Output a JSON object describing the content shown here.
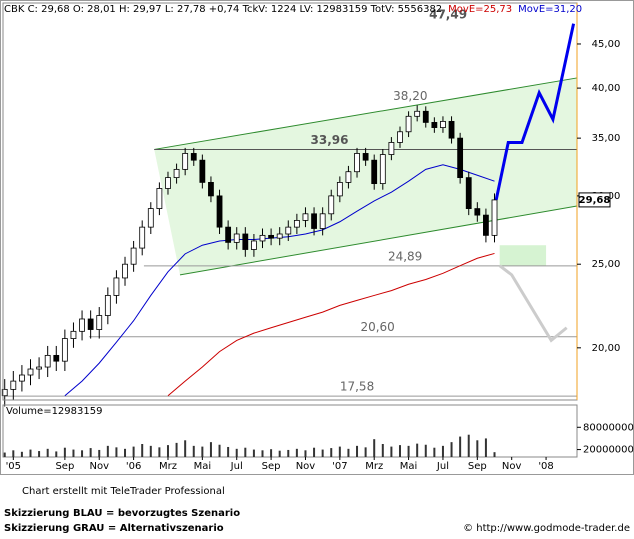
{
  "chart_data": {
    "type": "candlestick",
    "log_scale": true,
    "header": "CBK C: 29,68 O: 28,01 H: 29,97 L: 27,78 +0,74 TckV: 1224 LV: 12983159 TotV: 5556382",
    "x": [
      -1.5,
      -1,
      -0.5,
      0,
      0.5,
      1,
      1.5,
      2,
      2.5,
      3,
      3.5,
      4,
      4.5,
      5,
      5.5,
      6,
      6.5,
      7,
      7.5,
      8,
      8.5,
      9,
      9.5,
      10,
      10.5,
      11,
      11.5,
      12,
      12.5,
      13,
      13.5,
      14,
      14.5,
      15,
      15.5,
      16,
      16.5,
      17,
      17.5,
      18,
      18.5,
      19,
      19.5,
      20,
      20.5,
      21,
      21.5,
      22,
      22.5,
      23,
      23.5,
      24,
      24.5,
      25,
      25.5,
      26,
      26.5,
      27
    ],
    "open": [
      17.6,
      17.9,
      18.3,
      18.6,
      18.9,
      19.0,
      19.6,
      19.3,
      20.5,
      20.9,
      21.6,
      21.0,
      21.8,
      23.0,
      24.1,
      25.0,
      26.1,
      27.6,
      29.0,
      30.6,
      31.5,
      32.2,
      33.6,
      33.0,
      31.1,
      30.0,
      27.6,
      26.5,
      27.1,
      26.0,
      26.6,
      27.0,
      26.8,
      27.1,
      27.6,
      28.1,
      28.6,
      27.5,
      28.6,
      30.0,
      31.1,
      32.0,
      33.6,
      33.0,
      31.0,
      33.5,
      34.6,
      35.6,
      37.1,
      37.6,
      36.5,
      36.0,
      36.6,
      35.0,
      31.5,
      29.0,
      28.5,
      27.0
    ],
    "high": [
      18.4,
      18.8,
      19.1,
      19.4,
      19.5,
      20.1,
      20.1,
      21.0,
      21.4,
      22.1,
      22.1,
      22.3,
      23.5,
      24.6,
      25.5,
      26.6,
      28.1,
      29.5,
      31.1,
      32.0,
      32.7,
      34.1,
      34.1,
      33.5,
      31.6,
      30.5,
      28.1,
      27.6,
      27.6,
      27.1,
      27.5,
      27.5,
      27.6,
      28.1,
      28.6,
      29.1,
      29.1,
      29.1,
      30.5,
      31.6,
      32.5,
      34.1,
      34.1,
      33.5,
      34.0,
      35.1,
      36.1,
      37.6,
      38.2,
      38.1,
      37.0,
      37.1,
      37.1,
      35.5,
      32.0,
      29.5,
      29.0,
      30.2
    ],
    "low": [
      17.1,
      17.4,
      17.8,
      18.1,
      18.4,
      18.5,
      18.8,
      18.8,
      20.0,
      20.4,
      20.5,
      20.5,
      21.3,
      22.5,
      23.6,
      24.5,
      25.6,
      27.1,
      28.5,
      30.1,
      31.0,
      31.7,
      32.5,
      30.6,
      29.5,
      27.1,
      26.0,
      26.0,
      25.5,
      25.5,
      26.1,
      26.3,
      26.3,
      26.6,
      27.1,
      27.6,
      27.0,
      27.0,
      28.1,
      29.5,
      30.6,
      31.5,
      32.5,
      30.5,
      30.5,
      33.0,
      34.1,
      35.1,
      36.6,
      36.0,
      35.5,
      35.5,
      34.5,
      31.0,
      28.5,
      28.0,
      26.5,
      26.5
    ],
    "close": [
      17.9,
      18.3,
      18.6,
      18.9,
      19.0,
      19.6,
      19.3,
      20.5,
      20.9,
      21.6,
      21.0,
      21.8,
      23.0,
      24.1,
      25.0,
      26.1,
      27.6,
      29.0,
      30.6,
      31.5,
      32.2,
      33.6,
      33.0,
      31.1,
      30.0,
      27.6,
      26.5,
      27.1,
      26.0,
      26.6,
      27.0,
      26.8,
      27.1,
      27.6,
      28.1,
      28.6,
      27.5,
      28.6,
      30.0,
      31.1,
      32.0,
      33.6,
      33.0,
      31.0,
      33.5,
      34.6,
      35.6,
      37.1,
      37.6,
      36.5,
      36.0,
      36.6,
      35.0,
      31.5,
      29.0,
      28.5,
      27.0,
      29.68
    ],
    "last_label": "29,68",
    "xlim": [
      -1.6,
      31.8
    ],
    "xticks": [
      {
        "value": -1,
        "label": "'05"
      },
      {
        "value": 2,
        "label": "Sep"
      },
      {
        "value": 4,
        "label": "Nov"
      },
      {
        "value": 6,
        "label": "'06"
      },
      {
        "value": 8,
        "label": "Mrz"
      },
      {
        "value": 10,
        "label": "Mai"
      },
      {
        "value": 12,
        "label": "Jul"
      },
      {
        "value": 14,
        "label": "Sep"
      },
      {
        "value": 16,
        "label": "Nov"
      },
      {
        "value": 18,
        "label": "'07"
      },
      {
        "value": 20,
        "label": "Mrz"
      },
      {
        "value": 22,
        "label": "Mai"
      },
      {
        "value": 24,
        "label": "Jul"
      },
      {
        "value": 26,
        "label": "Sep"
      },
      {
        "value": 28,
        "label": "Nov"
      },
      {
        "value": 30,
        "label": "'08"
      }
    ],
    "ylim": [
      17.4,
      50.2
    ],
    "yticks": [
      {
        "value": 20,
        "label": "20,00"
      },
      {
        "value": 25,
        "label": "25,00"
      },
      {
        "value": 30,
        "label": "30,00"
      },
      {
        "value": 35,
        "label": "35,00"
      },
      {
        "value": 40,
        "label": "40,00"
      },
      {
        "value": 45,
        "label": "45,00"
      }
    ],
    "series": [
      {
        "name": "MovE=25,73",
        "color": "#cc0000",
        "x": [
          8,
          9,
          10,
          11,
          12,
          13,
          14,
          15,
          16,
          17,
          18,
          19,
          20,
          21,
          22,
          23,
          24,
          25,
          26,
          27
        ],
        "values": [
          17.6,
          18.3,
          19.0,
          19.8,
          20.4,
          20.8,
          21.1,
          21.4,
          21.7,
          22.0,
          22.4,
          22.7,
          23.0,
          23.3,
          23.7,
          24.0,
          24.4,
          24.9,
          25.4,
          25.73
        ]
      },
      {
        "name": "MovE=31,20",
        "color": "#0000cc",
        "x": [
          2,
          3,
          4,
          5,
          6,
          7,
          8,
          9,
          10,
          11,
          12,
          13,
          14,
          15,
          16,
          17,
          18,
          19,
          20,
          21,
          22,
          23,
          24,
          25,
          26,
          27
        ],
        "values": [
          17.6,
          18.3,
          19.2,
          20.3,
          21.5,
          23.0,
          24.5,
          25.7,
          26.3,
          26.6,
          26.7,
          26.7,
          26.8,
          26.9,
          27.1,
          27.4,
          28.0,
          28.8,
          29.6,
          30.3,
          31.2,
          32.2,
          32.6,
          32.2,
          31.7,
          31.2
        ]
      }
    ],
    "levels": [
      {
        "value": 47.49,
        "label": "47,49",
        "x": 24.3,
        "line_from": null,
        "emphasis": true
      },
      {
        "value": 38.2,
        "label": "38,20",
        "x": 22.1,
        "line_from": null,
        "emphasis": false
      },
      {
        "value": 33.96,
        "label": "33,96",
        "x": 17.4,
        "line_from": 7.2,
        "emphasis": true
      },
      {
        "value": 24.89,
        "label": "24,89",
        "x": 21.8,
        "line_from": 6.6,
        "emphasis": false
      },
      {
        "value": 20.6,
        "label": "20,60",
        "x": 20.2,
        "line_from": 3.4,
        "emphasis": false
      },
      {
        "value": 17.58,
        "label": "17,58",
        "x": 19.0,
        "line_from": -1.5,
        "emphasis": false
      }
    ],
    "channel": {
      "color": "#2e8b2e",
      "fill": "#e4f7e0",
      "upper": {
        "x": [
          7.2,
          31.8
        ],
        "values": [
          33.96,
          41.1
        ]
      },
      "lower": {
        "x": [
          8.7,
          31.8
        ],
        "values": [
          24.3,
          29.2
        ]
      }
    },
    "zone": {
      "color": "#d6f3d2",
      "x": [
        27.3,
        30.0
      ],
      "values": [
        24.89,
        26.3
      ]
    },
    "scenarios": [
      {
        "name": "Skizzierung BLAU = bevorzugtes Szenario",
        "color": "#0000ee",
        "x": [
          27.1,
          27.8,
          28.6,
          29.6,
          30.4,
          31.6
        ],
        "values": [
          29.7,
          34.6,
          34.6,
          39.5,
          36.8,
          47.5
        ]
      },
      {
        "name": "Skizzierung GRAU = Alternativszenario",
        "color": "#cccccc",
        "x": [
          27.3,
          28.0,
          30.3,
          31.2
        ],
        "values": [
          24.9,
          24.3,
          20.4,
          21.1
        ]
      }
    ],
    "volume": {
      "label": "Volume=12983159",
      "color": "#333333",
      "values": [
        12000000,
        18000000,
        14000000,
        20000000,
        16000000,
        22000000,
        15000000,
        25000000,
        20000000,
        18000000,
        24000000,
        19000000,
        30000000,
        26000000,
        22000000,
        28000000,
        35000000,
        30000000,
        26000000,
        32000000,
        38000000,
        45000000,
        30000000,
        28000000,
        40000000,
        33000000,
        27000000,
        22000000,
        25000000,
        20000000,
        18000000,
        21000000,
        17000000,
        19000000,
        22000000,
        18000000,
        25000000,
        20000000,
        24000000,
        28000000,
        22000000,
        30000000,
        26000000,
        48000000,
        35000000,
        28000000,
        32000000,
        30000000,
        36000000,
        33000000,
        25000000,
        30000000,
        40000000,
        55000000,
        60000000,
        45000000,
        50000000,
        12983159
      ],
      "ylim": [
        0,
        140000000
      ],
      "yticks": [
        20000000,
        80000000
      ]
    },
    "credit": "Chart erstellt mit TeleTrader Professional",
    "source": "© http://www.godmode-trader.de"
  }
}
